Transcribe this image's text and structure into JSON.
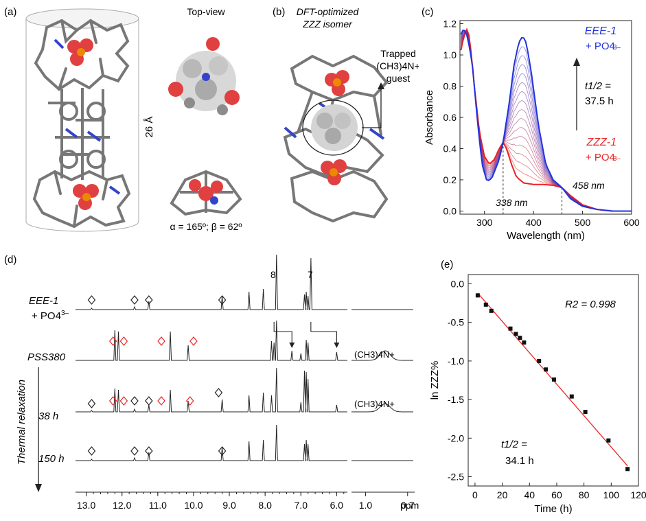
{
  "colors": {
    "eee": "#2233dd",
    "zzz": "#ee2222",
    "black": "#222222",
    "grey": "#808080",
    "orange": "#ee8800",
    "red": "#e04040",
    "blue": "#3344cc",
    "white": "#dddddd"
  },
  "panel_a": {
    "label": "(a)",
    "top_view": "Top-view",
    "length": "26 Å",
    "angles": "α = 165º; β = 62º"
  },
  "panel_b": {
    "label": "(b)",
    "title_line1": "DFT-optimized",
    "title_line2": "ZZZ isomer",
    "trapped_line1": "Trapped",
    "trapped_line2": "(CH3)4N+",
    "trapped_line3": "guest"
  },
  "panel_c": {
    "label": "(c)",
    "eee_label": "EEE-1",
    "eee_plus": "+ PO4",
    "zzz_label": "ZZZ-1",
    "zzz_plus": "+ PO4",
    "anion_charge": "3–",
    "half_life_label": "t1/2 =",
    "half_life_value": "37.5 h",
    "iso1": "338 nm",
    "iso2": "458 nm"
  },
  "panel_d": {
    "label": "(d)",
    "eee_label": "EEE-1",
    "eee_plus": "+ PO4",
    "anion_charge": "3–",
    "pss_label": "PSS380",
    "thermal": "Thermal relaxation",
    "t38": "38 h",
    "t150": "150 h",
    "peak8": "8",
    "peak7": "7",
    "guest1": "(CH3)4N+",
    "guest2": "(CH3)4N+",
    "ppm_unit": "ppm",
    "axis_ticks": [
      "13.0",
      "12.0",
      "11.0",
      "10.0",
      "9.0",
      "8.0",
      "7.0",
      "6.0"
    ],
    "inset_ticks": [
      "1.0",
      "0.7"
    ]
  },
  "panel_e": {
    "label": "(e)",
    "r2": "R2 = 0.998",
    "half_life_label": "t1/2 =",
    "half_life_value": "34.1 h"
  },
  "chart_data": [
    {
      "type": "line",
      "title": "",
      "xlabel": "Wavelength (nm)",
      "ylabel": "Absorbance",
      "xlim": [
        250,
        600
      ],
      "ylim": [
        -0.02,
        1.22
      ],
      "x_ticks": [
        300,
        400,
        500,
        600
      ],
      "y_ticks": [
        0.0,
        0.2,
        0.4,
        0.6,
        0.8,
        1.0,
        1.2
      ],
      "series": [
        {
          "name": "EEE-1 + PO4 3-",
          "x": [
            250,
            258,
            265,
            275,
            285,
            295,
            305,
            315,
            330,
            338,
            350,
            360,
            370,
            378,
            385,
            395,
            410,
            425,
            440,
            458,
            475,
            500,
            530,
            560,
            600
          ],
          "values": [
            1.12,
            1.17,
            1.12,
            0.95,
            0.6,
            0.3,
            0.19,
            0.21,
            0.33,
            0.44,
            0.68,
            0.93,
            1.08,
            1.12,
            1.08,
            0.9,
            0.55,
            0.3,
            0.2,
            0.15,
            0.08,
            0.03,
            0.01,
            0.0,
            0.0
          ]
        },
        {
          "name": "ZZZ-1 + PO4 3-",
          "x": [
            250,
            258,
            265,
            270,
            280,
            290,
            300,
            310,
            320,
            330,
            338,
            345,
            355,
            365,
            380,
            400,
            420,
            440,
            458,
            475,
            500,
            530,
            560,
            600
          ],
          "values": [
            1.0,
            1.12,
            1.17,
            1.1,
            0.78,
            0.5,
            0.35,
            0.3,
            0.33,
            0.4,
            0.44,
            0.4,
            0.3,
            0.22,
            0.18,
            0.17,
            0.17,
            0.165,
            0.15,
            0.1,
            0.04,
            0.01,
            0.0,
            0.0
          ]
        }
      ],
      "annotations": [
        "338 nm",
        "458 nm",
        "t1/2 = 37.5 h"
      ]
    },
    {
      "type": "scatter",
      "title": "",
      "xlabel": "Time (h)",
      "ylabel": "ln ZZZ%",
      "xlim": [
        -5,
        120
      ],
      "ylim": [
        -2.62,
        0.12
      ],
      "x_ticks": [
        0,
        20,
        40,
        60,
        80,
        100,
        120
      ],
      "y_ticks": [
        0.0,
        -0.5,
        -1.0,
        -1.5,
        -2.0,
        -2.5
      ],
      "series": [
        {
          "name": "data",
          "x": [
            2,
            8,
            12,
            26,
            30,
            33,
            36,
            47,
            52,
            58,
            71,
            81,
            98,
            112
          ],
          "values": [
            -0.15,
            -0.27,
            -0.35,
            -0.58,
            -0.65,
            -0.7,
            -0.76,
            -1.0,
            -1.11,
            -1.24,
            -1.46,
            -1.66,
            -2.03,
            -2.4
          ]
        },
        {
          "name": "fit",
          "x": [
            2,
            112
          ],
          "values": [
            -0.12,
            -2.36
          ]
        }
      ],
      "annotations": [
        "R2 = 0.998",
        "t1/2 = 34.1 h"
      ]
    }
  ]
}
